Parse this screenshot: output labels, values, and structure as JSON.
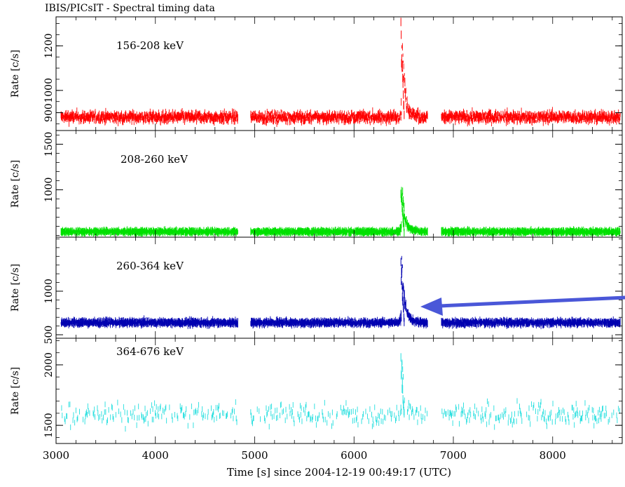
{
  "title": "IBIS/PICsIT - Spectral timing data",
  "xlabel": "Time [s] since 2004-12-19 00:49:17 (UTC)",
  "arrow_color": "#4a57d8",
  "chart_data": [
    {
      "type": "scatter",
      "band": "156-208 keV",
      "ylabel": "Rate [c/s]",
      "color": "#ff0000",
      "xlim": [
        3000,
        8700
      ],
      "ylim": [
        820,
        1330
      ],
      "yticks": [
        900,
        1000,
        1200
      ],
      "yticklabels": [
        "900",
        "1000",
        "1200"
      ],
      "baseline": 880,
      "noise": 20,
      "peak": 1330
    },
    {
      "type": "scatter",
      "band": "208-260 keV",
      "ylabel": "Rate [c/s]",
      "color": "#00e000",
      "xlim": [
        3000,
        8700
      ],
      "ylim": [
        480,
        1650
      ],
      "yticks": [
        1000,
        1500
      ],
      "yticklabels": [
        "1000",
        "1500"
      ],
      "baseline": 540,
      "noise": 12,
      "peak": 1160
    },
    {
      "type": "scatter",
      "band": "260-364 keV",
      "ylabel": "Rate [c/s]",
      "color": "#0000b0",
      "xlim": [
        3000,
        8700
      ],
      "ylim": [
        460,
        1620
      ],
      "yticks": [
        500,
        1000
      ],
      "yticklabels": [
        "500",
        "1000"
      ],
      "baseline": 640,
      "noise": 22,
      "peak": 1510
    },
    {
      "type": "scatter",
      "band": "364-676 keV",
      "ylabel": "Rate [c/s]",
      "color": "#20dede",
      "xlim": [
        3000,
        8700
      ],
      "ylim": [
        1350,
        2220
      ],
      "yticks": [
        1500,
        2000
      ],
      "yticklabels": [
        "1500",
        "2000"
      ],
      "baseline": 1590,
      "noise": 90,
      "peak": 2200
    }
  ],
  "x_axis": {
    "ticks": [
      3000,
      4000,
      5000,
      6000,
      7000,
      8000
    ],
    "ticklabels": [
      "3000",
      "4000",
      "5000",
      "6000",
      "7000",
      "8000"
    ]
  },
  "data_segments": [
    [
      3050,
      4830
    ],
    [
      4960,
      6740
    ],
    [
      6880,
      8680
    ]
  ],
  "flare": {
    "time": 6480,
    "decay_end": 6650
  }
}
